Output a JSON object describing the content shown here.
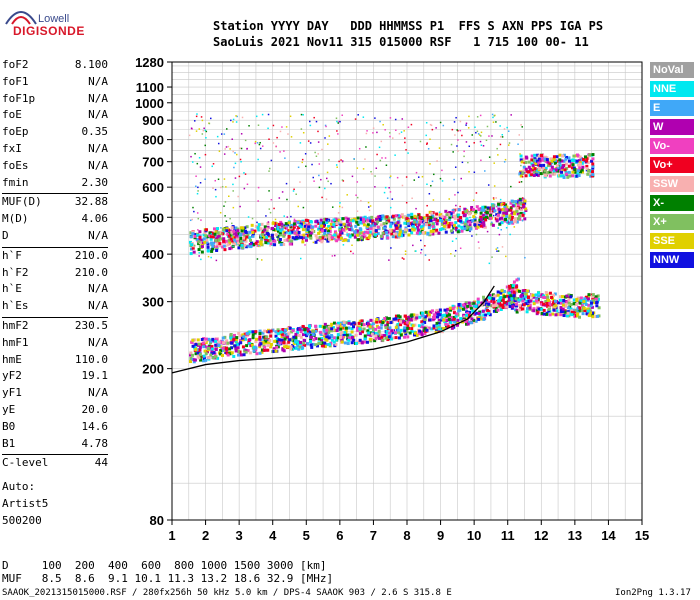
{
  "logo": {
    "top": "Lowell",
    "bottom": "DIGISONDE"
  },
  "header": {
    "line1": "Station YYYY DAY   DDD HHMMSS P1  FFS S AXN PPS IGA PS",
    "line2": "SaoLuis 2021 Nov11 315 015000 RSF   1 715 100 00- 11"
  },
  "params": [
    {
      "k": "foF2",
      "v": "8.100"
    },
    {
      "k": "foF1",
      "v": "N/A"
    },
    {
      "k": "foF1p",
      "v": "N/A"
    },
    {
      "k": "foE",
      "v": "N/A"
    },
    {
      "k": "foEp",
      "v": "0.35"
    },
    {
      "k": "fxI",
      "v": "N/A"
    },
    {
      "k": "foEs",
      "v": "N/A"
    },
    {
      "k": "fmin",
      "v": "2.30"
    },
    {
      "k": "MUF(D)",
      "v": "32.88"
    },
    {
      "k": "M(D)",
      "v": "4.06"
    },
    {
      "k": "D",
      "v": "N/A"
    },
    {
      "k": "h`F",
      "v": "210.0"
    },
    {
      "k": "h`F2",
      "v": "210.0"
    },
    {
      "k": "h`E",
      "v": "N/A"
    },
    {
      "k": "h`Es",
      "v": "N/A"
    },
    {
      "k": "hmF2",
      "v": "230.5"
    },
    {
      "k": "hmF1",
      "v": "N/A"
    },
    {
      "k": "hmE",
      "v": "110.0"
    },
    {
      "k": "yF2",
      "v": "19.1"
    },
    {
      "k": "yF1",
      "v": "N/A"
    },
    {
      "k": "yE",
      "v": "20.0"
    },
    {
      "k": "B0",
      "v": "14.6"
    },
    {
      "k": "B1",
      "v": "4.78"
    },
    {
      "k": "C-level",
      "v": "44"
    }
  ],
  "auto": {
    "line1": "Auto:",
    "line2": "Artist5",
    "line3": "500200"
  },
  "legend": [
    {
      "label": "NoVal",
      "color": "#a0a0a0"
    },
    {
      "label": "NNE",
      "color": "#00e8f0"
    },
    {
      "label": "E",
      "color": "#40a8f8"
    },
    {
      "label": "W",
      "color": "#b000b0"
    },
    {
      "label": "Vo-",
      "color": "#f040c0"
    },
    {
      "label": "Vo+",
      "color": "#f00020"
    },
    {
      "label": "SSW",
      "color": "#f8b0b0"
    },
    {
      "label": "X-",
      "color": "#008000"
    },
    {
      "label": "X+",
      "color": "#80c060"
    },
    {
      "label": "SSE",
      "color": "#e0d000"
    },
    {
      "label": "NNW",
      "color": "#1010e0"
    }
  ],
  "bottom": {
    "d_line": "D     100  200  400  600  800 1000 1500 3000 [km]",
    "muf_line": "MUF   8.5  8.6  9.1 10.1 11.3 13.2 18.6 32.9 [MHz]"
  },
  "footer": {
    "left": "SAAOK_2021315015000.RSF / 280fx256h 50 kHz 5.0 km / DPS-4 SAAOK 903 / 2.6 S 315.8 E",
    "right": "Ion2Png 1.3.17"
  },
  "chart_data": {
    "type": "scatter",
    "title": "",
    "xlabel": "",
    "ylabel": "",
    "xlim": [
      1,
      15
    ],
    "ylim": [
      80,
      1280
    ],
    "yscale": "log",
    "x_ticks": [
      1,
      2,
      3,
      4,
      5,
      6,
      7,
      8,
      9,
      10,
      11,
      12,
      13,
      14,
      15
    ],
    "y_ticks": [
      80,
      200,
      300,
      400,
      500,
      600,
      700,
      800,
      900,
      1000,
      1100,
      1280
    ],
    "grid": true,
    "traces": [
      {
        "name": "o-trace F layer",
        "x": [
          1.5,
          3,
          5,
          7,
          9,
          10.5,
          11.3
        ],
        "y": [
          220,
          230,
          240,
          250,
          265,
          290,
          320
        ]
      },
      {
        "name": "second hop",
        "x": [
          1.5,
          3,
          5,
          7,
          9,
          10.5,
          11.5
        ],
        "y": [
          425,
          440,
          455,
          465,
          480,
          500,
          520
        ]
      },
      {
        "name": "x-trace",
        "x": [
          11,
          12,
          13,
          13.7
        ],
        "y": [
          300,
          295,
          290,
          290
        ]
      },
      {
        "name": "high hop",
        "x": [
          11.3,
          12.5,
          13.5
        ],
        "y": [
          680,
          675,
          680
        ]
      }
    ],
    "profile_line": {
      "x": [
        1,
        2,
        3,
        4,
        5,
        6,
        7,
        8,
        9,
        9.8,
        10.3,
        10.6
      ],
      "y": [
        195,
        205,
        210,
        213,
        216,
        220,
        225,
        235,
        250,
        270,
        300,
        330
      ]
    }
  }
}
